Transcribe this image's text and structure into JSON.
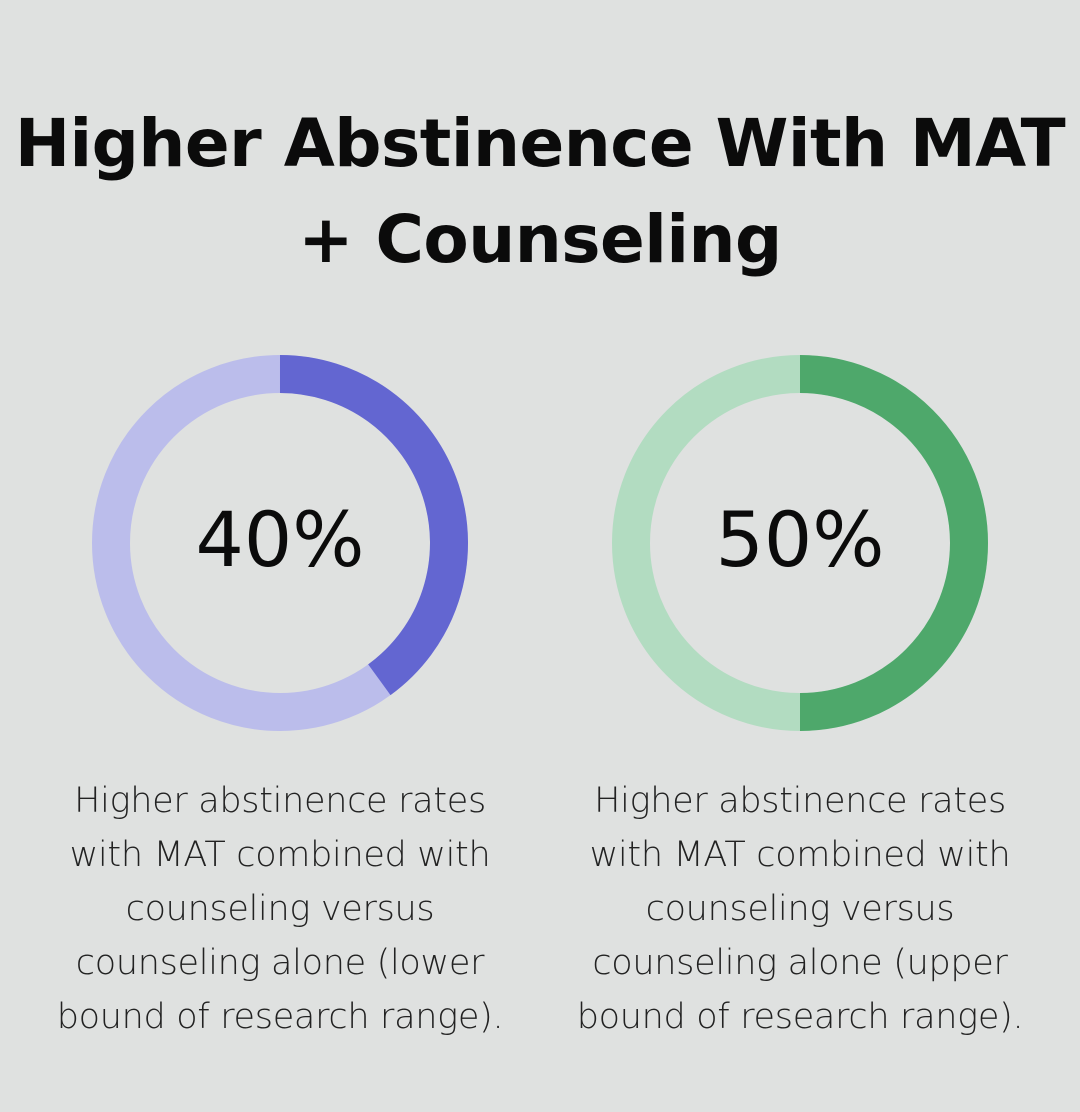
{
  "title": "Higher Abstinence With MAT + Counseling",
  "chart_data": [
    {
      "type": "pie",
      "value": 40,
      "max": 100,
      "label": "40%",
      "description": "Higher abstinence rates with MAT combined with counseling versus counseling alone (lower bound of research range).",
      "colors": {
        "fill": "#6366d1",
        "track": "#bbbdeb"
      }
    },
    {
      "type": "pie",
      "value": 50,
      "max": 100,
      "label": "50%",
      "description": "Higher abstinence rates with MAT combined with counseling versus counseling alone (upper bound of research range).",
      "colors": {
        "fill": "#4ea86b",
        "track": "#b2dcc1"
      }
    }
  ]
}
